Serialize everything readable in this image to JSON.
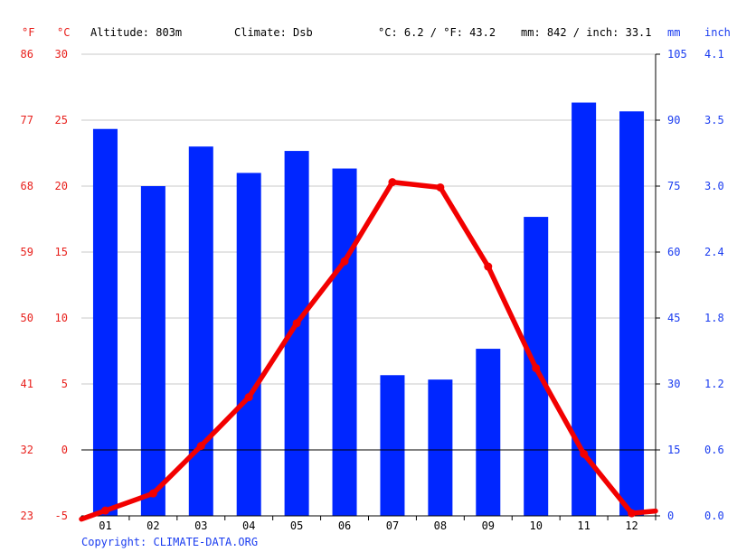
{
  "header": {
    "altitude": "Altitude: 803m",
    "climate": "Climate: Dsb",
    "avg_temp": "°C: 6.2 / °F: 43.2",
    "precip": "mm: 842 / inch: 33.1"
  },
  "units": {
    "f": "°F",
    "c": "°C",
    "mm": "mm",
    "inch": "inch"
  },
  "copyright": "Copyright: CLIMATE-DATA.ORG",
  "colors": {
    "precip_bar": "#0026ff",
    "temp_line": "#f20000",
    "left_axis_text": "#e8201c",
    "right_axis_text": "#1a3cf0"
  },
  "chart_data": {
    "type": "bar",
    "categories": [
      "01",
      "02",
      "03",
      "04",
      "05",
      "06",
      "07",
      "08",
      "09",
      "10",
      "11",
      "12"
    ],
    "series": [
      {
        "type": "bar",
        "axis": "right",
        "unit": "mm",
        "values": [
          88,
          75,
          84,
          78,
          83,
          79,
          32,
          31,
          38,
          68,
          94,
          92
        ]
      },
      {
        "type": "line",
        "axis": "left",
        "unit": "°C",
        "values": [
          -4.6,
          -3.3,
          0.3,
          4.0,
          9.6,
          14.3,
          20.3,
          19.9,
          13.9,
          6.2,
          -0.3,
          -4.8
        ]
      }
    ],
    "left_axis_c": {
      "ticks": [
        30,
        25,
        20,
        15,
        10,
        5,
        0,
        -5
      ],
      "range": [
        -5,
        30
      ]
    },
    "left_axis_f": {
      "ticks": [
        86,
        77,
        68,
        59,
        50,
        41,
        32,
        23
      ]
    },
    "right_axis_mm": {
      "ticks": [
        105,
        90,
        75,
        60,
        45,
        30,
        15,
        0
      ],
      "range": [
        0,
        105
      ]
    },
    "right_axis_inch": {
      "ticks": [
        "4.1",
        "3.5",
        "3.0",
        "2.4",
        "1.8",
        "1.2",
        "0.6",
        "0.0"
      ]
    },
    "grid": true
  }
}
